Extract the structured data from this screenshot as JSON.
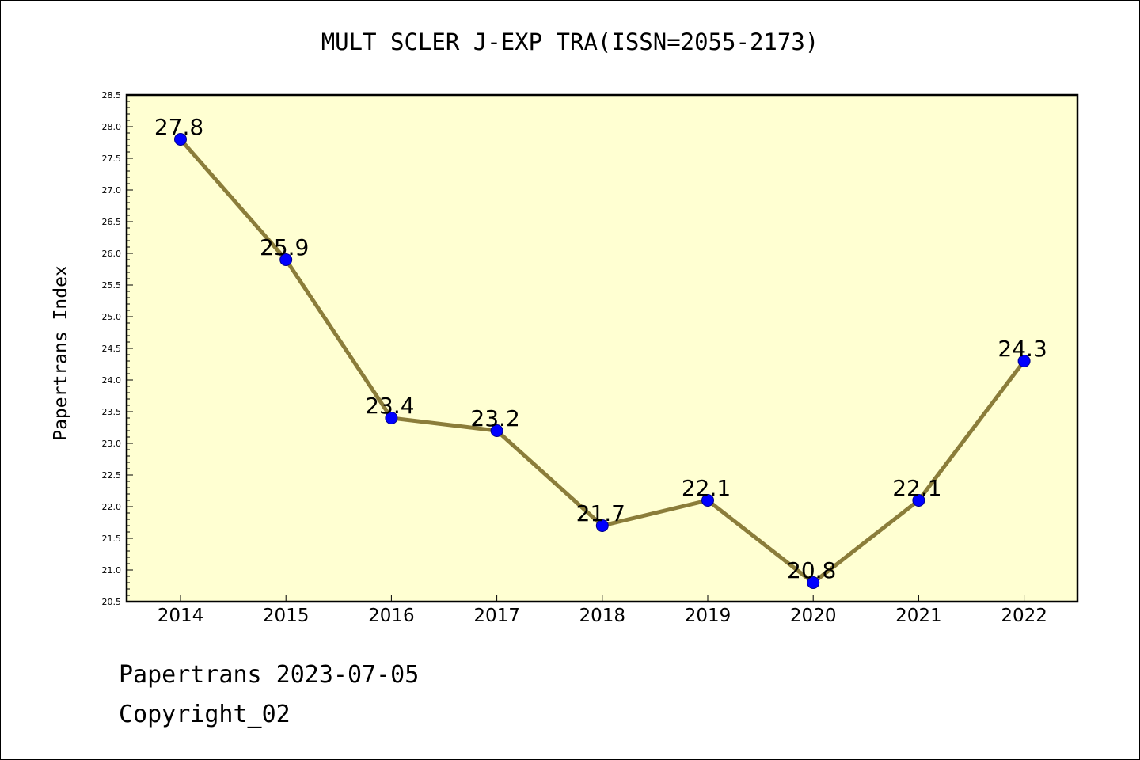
{
  "chart_data": {
    "type": "line",
    "title": "MULT SCLER J-EXP TRA(ISSN=2055-2173)",
    "xlabel": "",
    "ylabel": "Papertrans Index",
    "categories": [
      "2014",
      "2015",
      "2016",
      "2017",
      "2018",
      "2019",
      "2020",
      "2021",
      "2022"
    ],
    "series": [
      {
        "values": [
          27.8,
          25.9,
          23.4,
          23.2,
          21.7,
          22.1,
          20.8,
          22.1,
          24.3
        ],
        "data_labels": [
          "27.8",
          "25.9",
          "23.4",
          "23.2",
          "21.7",
          "22.1",
          "20.8",
          "22.1",
          "24.3"
        ]
      }
    ],
    "ylim": [
      20.5,
      28.5
    ],
    "yticks": [
      "20.5",
      "21.0",
      "21.5",
      "22.0",
      "22.5",
      "23.0",
      "23.5",
      "24.0",
      "24.5",
      "25.0",
      "25.5",
      "26.0",
      "26.5",
      "27.0",
      "27.5",
      "28.0",
      "28.5"
    ],
    "grid": false,
    "legend": "none",
    "colors": {
      "plot_background": "#ffffd2",
      "line": "#8b7d3a",
      "marker_fill": "#0000ff",
      "marker_edge": "#00008b"
    }
  },
  "footer": {
    "line1": "Papertrans 2023-07-05",
    "line2": "Copyright_02"
  }
}
